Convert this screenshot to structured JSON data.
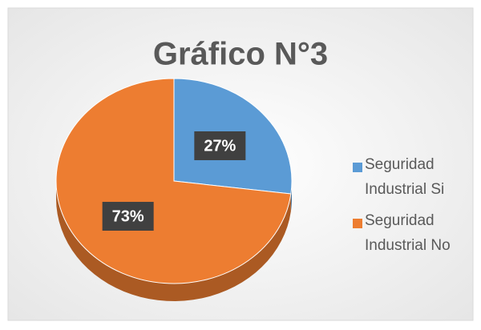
{
  "chart_data": {
    "type": "pie",
    "title": "Gráfico N°3",
    "categories": [
      "Seguridad Industrial Si",
      "Seguridad Industrial No"
    ],
    "values": [
      27,
      73
    ],
    "value_labels": [
      "27%",
      "73%"
    ],
    "colors": [
      "#5b9bd5",
      "#ed7d31"
    ],
    "legend": "right"
  }
}
